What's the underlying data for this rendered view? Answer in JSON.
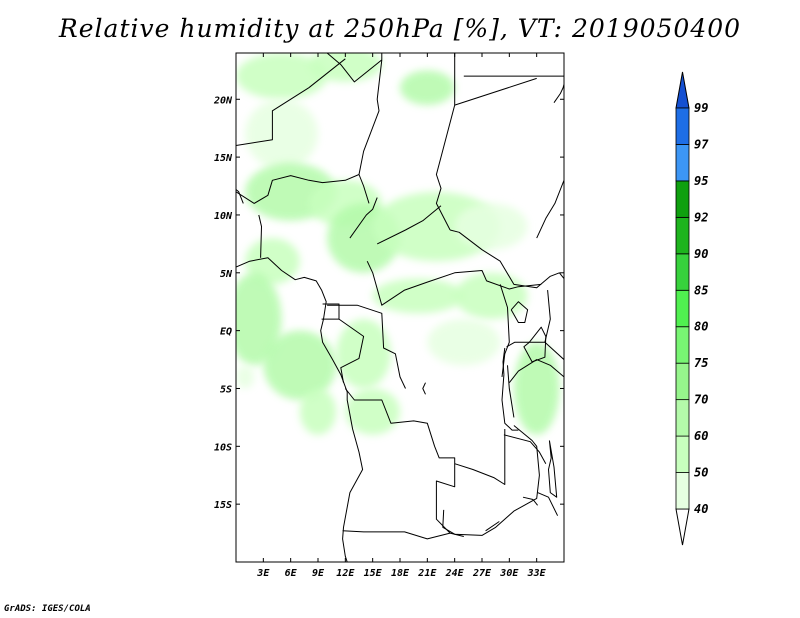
{
  "title": "Relative humidity at 250hPa [%], VT: 2019050400",
  "credit": "GrADS: IGES/COLA",
  "map": {
    "lon_range": [
      0,
      36
    ],
    "lat_range": [
      -20,
      24
    ],
    "x_ticks": [
      {
        "lon": 3,
        "label": "3E"
      },
      {
        "lon": 6,
        "label": "6E"
      },
      {
        "lon": 9,
        "label": "9E"
      },
      {
        "lon": 12,
        "label": "12E"
      },
      {
        "lon": 15,
        "label": "15E"
      },
      {
        "lon": 18,
        "label": "18E"
      },
      {
        "lon": 21,
        "label": "21E"
      },
      {
        "lon": 24,
        "label": "24E"
      },
      {
        "lon": 27,
        "label": "27E"
      },
      {
        "lon": 30,
        "label": "30E"
      },
      {
        "lon": 33,
        "label": "33E"
      }
    ],
    "y_ticks": [
      {
        "lat": 20,
        "label": "20N"
      },
      {
        "lat": 15,
        "label": "15N"
      },
      {
        "lat": 10,
        "label": "10N"
      },
      {
        "lat": 5,
        "label": "5N"
      },
      {
        "lat": 0,
        "label": "EQ"
      },
      {
        "lat": -5,
        "label": "5S"
      },
      {
        "lat": -10,
        "label": "10S"
      },
      {
        "lat": -15,
        "label": "15S"
      }
    ]
  },
  "colorbar": {
    "bins": [
      {
        "from": 40,
        "to": 50,
        "color": "#e6ffe1"
      },
      {
        "from": 50,
        "to": 60,
        "color": "#c8ffbe"
      },
      {
        "from": 60,
        "to": 70,
        "color": "#b4faaa"
      },
      {
        "from": 70,
        "to": 75,
        "color": "#96f58c"
      },
      {
        "from": 75,
        "to": 80,
        "color": "#78f573"
      },
      {
        "from": 80,
        "to": 85,
        "color": "#50f050"
      },
      {
        "from": 85,
        "to": 90,
        "color": "#37d23c"
      },
      {
        "from": 90,
        "to": 92,
        "color": "#1eb41e"
      },
      {
        "from": 92,
        "to": 95,
        "color": "#0fa00f"
      },
      {
        "from": 95,
        "to": 97,
        "color": "#3c96f5"
      },
      {
        "from": 97,
        "to": 99,
        "color": "#1e6ee6"
      }
    ],
    "under_color": "#ffffff",
    "over_color": "#1450d2",
    "labels": [
      "40",
      "50",
      "60",
      "70",
      "75",
      "80",
      "85",
      "90",
      "92",
      "95",
      "97",
      "99"
    ]
  },
  "humidity_fields": [
    {
      "lon": 5,
      "lat": 22,
      "rlon": 5,
      "rlat": 2,
      "value": 55
    },
    {
      "lon": 12,
      "lat": 23,
      "rlon": 4,
      "rlat": 1.5,
      "value": 50
    },
    {
      "lon": 21,
      "lat": 21,
      "rlon": 3,
      "rlat": 1.5,
      "value": 60
    },
    {
      "lon": 5,
      "lat": 17,
      "rlon": 4,
      "rlat": 3,
      "value": 45
    },
    {
      "lon": 6,
      "lat": 12,
      "rlon": 5,
      "rlat": 2.5,
      "value": 60
    },
    {
      "lon": 12,
      "lat": 11,
      "rlon": 4,
      "rlat": 2,
      "value": 55
    },
    {
      "lon": 14,
      "lat": 8,
      "rlon": 4,
      "rlat": 3,
      "value": 62
    },
    {
      "lon": 22,
      "lat": 9,
      "rlon": 7,
      "rlat": 3,
      "value": 55
    },
    {
      "lon": 28,
      "lat": 9,
      "rlon": 4,
      "rlat": 2,
      "value": 45
    },
    {
      "lon": 4,
      "lat": 6,
      "rlon": 3,
      "rlat": 2,
      "value": 58
    },
    {
      "lon": 2,
      "lat": 1,
      "rlon": 3,
      "rlat": 4,
      "value": 60
    },
    {
      "lon": 7,
      "lat": -3,
      "rlon": 4,
      "rlat": 3,
      "value": 62
    },
    {
      "lon": 14,
      "lat": -2,
      "rlon": 3,
      "rlat": 3,
      "value": 55
    },
    {
      "lon": 20,
      "lat": 3,
      "rlon": 5,
      "rlat": 1.5,
      "value": 50
    },
    {
      "lon": 28,
      "lat": 3,
      "rlon": 4,
      "rlat": 2,
      "value": 52
    },
    {
      "lon": 25,
      "lat": -1,
      "rlon": 4,
      "rlat": 2,
      "value": 45
    },
    {
      "lon": 33,
      "lat": -5,
      "rlon": 2.5,
      "rlat": 4,
      "value": 62
    },
    {
      "lon": 15,
      "lat": -7,
      "rlon": 3,
      "rlat": 2,
      "value": 55
    },
    {
      "lon": 9,
      "lat": -7,
      "rlon": 2,
      "rlat": 2,
      "value": 50
    },
    {
      "lon": 1,
      "lat": -4,
      "rlon": 1,
      "rlat": 1,
      "value": 45
    }
  ],
  "borders": [
    [
      [
        0,
        24
      ],
      [
        10,
        24
      ],
      [
        11.5,
        23
      ],
      [
        13,
        21.5
      ],
      [
        16,
        23.4
      ]
    ],
    [
      [
        16,
        23.4
      ],
      [
        16,
        24
      ]
    ],
    [
      [
        24,
        19.5
      ],
      [
        24,
        24
      ]
    ],
    [
      [
        25,
        22
      ],
      [
        36,
        22
      ]
    ],
    [
      [
        8,
        21
      ],
      [
        12,
        23.5
      ]
    ],
    [
      [
        16,
        23.4
      ],
      [
        15.5,
        20
      ],
      [
        15.7,
        19
      ],
      [
        14,
        15.5
      ],
      [
        13.5,
        13.5
      ],
      [
        14,
        12.5
      ],
      [
        14.6,
        11
      ]
    ],
    [
      [
        0,
        12
      ],
      [
        2,
        11
      ],
      [
        3.5,
        11.7
      ],
      [
        4,
        13
      ],
      [
        6,
        13.4
      ],
      [
        8,
        13
      ],
      [
        9.5,
        12.8
      ],
      [
        12,
        13
      ],
      [
        13.5,
        13.5
      ]
    ],
    [
      [
        0,
        16
      ],
      [
        4,
        16.5
      ],
      [
        4,
        19
      ],
      [
        8,
        21
      ]
    ],
    [
      [
        24,
        19.5
      ],
      [
        22.5,
        15
      ],
      [
        22,
        13.5
      ],
      [
        22.5,
        12.3
      ],
      [
        22,
        11
      ],
      [
        23.5,
        8.7
      ]
    ],
    [
      [
        24,
        19.5
      ],
      [
        33,
        21.8
      ]
    ],
    [
      [
        2.5,
        10
      ],
      [
        2.8,
        9
      ],
      [
        2.7,
        6.3
      ]
    ],
    [
      [
        12.5,
        8
      ],
      [
        14.3,
        10
      ],
      [
        15,
        10.5
      ],
      [
        15.5,
        11.5
      ]
    ],
    [
      [
        15.5,
        7.5
      ],
      [
        18.6,
        8.7
      ],
      [
        20.5,
        9.5
      ],
      [
        22.5,
        10.8
      ]
    ],
    [
      [
        14.4,
        6
      ],
      [
        15,
        5
      ],
      [
        16,
        2.2
      ],
      [
        18.5,
        3.5
      ],
      [
        21,
        4.2
      ],
      [
        24,
        5
      ],
      [
        27,
        5.2
      ],
      [
        27.5,
        4.3
      ],
      [
        30,
        3.6
      ],
      [
        31,
        3.8
      ],
      [
        33.5,
        4
      ]
    ],
    [
      [
        23.5,
        8.7
      ],
      [
        24.5,
        8.5
      ],
      [
        27,
        7
      ],
      [
        29,
        6
      ],
      [
        30.5,
        4
      ],
      [
        33,
        3.7
      ],
      [
        34.5,
        4.7
      ],
      [
        35.5,
        5
      ],
      [
        36,
        4.5
      ]
    ],
    [
      [
        33,
        8
      ],
      [
        34,
        9.7
      ],
      [
        35,
        11
      ],
      [
        36,
        13
      ]
    ],
    [
      [
        29,
        4
      ],
      [
        29.8,
        2
      ],
      [
        30,
        -1
      ],
      [
        29.5,
        -2
      ],
      [
        29.2,
        -4
      ]
    ],
    [
      [
        9.5,
        2.3
      ],
      [
        11.3,
        2.3
      ],
      [
        11.3,
        1
      ],
      [
        9.4,
        1
      ]
    ],
    [
      [
        10,
        2.2
      ],
      [
        13.3,
        2.2
      ],
      [
        16,
        1.5
      ],
      [
        16.2,
        -1.5
      ],
      [
        17.5,
        -2
      ],
      [
        18,
        -4
      ],
      [
        18.6,
        -5
      ]
    ],
    [
      [
        11.3,
        1
      ],
      [
        14,
        -0.5
      ],
      [
        13.5,
        -2.4
      ],
      [
        11.5,
        -3.2
      ],
      [
        11.8,
        -4.5
      ]
    ],
    [
      [
        12,
        -5
      ],
      [
        13,
        -6
      ],
      [
        16,
        -6
      ],
      [
        17,
        -8
      ],
      [
        19.5,
        -7.8
      ],
      [
        21,
        -8
      ],
      [
        21.8,
        -10
      ],
      [
        22.3,
        -11
      ],
      [
        24,
        -11
      ],
      [
        24,
        -13.5
      ],
      [
        22,
        -13
      ],
      [
        22,
        -16.3
      ],
      [
        23.5,
        -17.5
      ],
      [
        25,
        -17.8
      ]
    ],
    [
      [
        11.7,
        -17.3
      ],
      [
        14,
        -17.4
      ],
      [
        18.5,
        -17.4
      ],
      [
        21,
        -18
      ],
      [
        23.5,
        -17.5
      ]
    ],
    [
      [
        24,
        -11.5
      ],
      [
        26,
        -12
      ],
      [
        28.3,
        -12.7
      ],
      [
        29.5,
        -13.3
      ],
      [
        29.5,
        -8.5
      ]
    ],
    [
      [
        22.8,
        -15.5
      ],
      [
        22.7,
        -17
      ],
      [
        24,
        -17.6
      ],
      [
        27,
        -17.7
      ],
      [
        28.5,
        -17
      ],
      [
        30.5,
        -15.6
      ],
      [
        33,
        -14.5
      ],
      [
        33.3,
        -12.5
      ],
      [
        33,
        -10
      ],
      [
        32.5,
        -9.5
      ],
      [
        30.5,
        -8.2
      ]
    ],
    [
      [
        29.7,
        -1.4
      ],
      [
        30.6,
        -1
      ],
      [
        33.9,
        -1
      ],
      [
        34.5,
        1
      ],
      [
        34.2,
        3.5
      ]
    ],
    [
      [
        33.9,
        -1
      ],
      [
        36,
        -2.5
      ]
    ],
    [
      [
        30,
        -4.5
      ],
      [
        31,
        -3.5
      ],
      [
        33,
        -2.5
      ],
      [
        34.5,
        -3
      ],
      [
        36,
        -4
      ]
    ],
    [
      [
        29.4,
        -9
      ],
      [
        32.3,
        -9.6
      ],
      [
        33.3,
        -10.5
      ],
      [
        34,
        -11.5
      ]
    ],
    [
      [
        35.3,
        -16
      ],
      [
        34.3,
        -14.4
      ],
      [
        33.1,
        -14
      ]
    ]
  ],
  "coastlines": [
    [
      [
        0,
        5.5
      ],
      [
        1.5,
        6
      ],
      [
        3.5,
        6.3
      ],
      [
        5,
        5.2
      ],
      [
        6.5,
        4.4
      ],
      [
        7.5,
        4.6
      ],
      [
        8.8,
        4.3
      ],
      [
        9.4,
        3.5
      ],
      [
        9.9,
        2.5
      ],
      [
        9.6,
        1
      ],
      [
        9.3,
        0
      ],
      [
        9.5,
        -1
      ],
      [
        10.6,
        -2.5
      ],
      [
        11.5,
        -3.8
      ],
      [
        12.2,
        -5.3
      ],
      [
        12.2,
        -6
      ],
      [
        12.8,
        -8.5
      ],
      [
        13.5,
        -10.5
      ],
      [
        13.9,
        -12
      ],
      [
        12.5,
        -14
      ],
      [
        11.8,
        -17
      ],
      [
        11.7,
        -18
      ],
      [
        12,
        -19.5
      ],
      [
        12.2,
        -20
      ]
    ],
    [
      [
        0,
        12.2
      ],
      [
        0.3,
        12
      ],
      [
        0.8,
        11
      ]
    ],
    [
      [
        20.8,
        -4.5
      ],
      [
        20.5,
        -5
      ],
      [
        20.8,
        -5.5
      ]
    ],
    [
      [
        29.4,
        -3.8
      ],
      [
        29.2,
        -6
      ],
      [
        29.5,
        -8
      ],
      [
        30.3,
        -8.6
      ],
      [
        31,
        -8.6
      ]
    ],
    [
      [
        29.8,
        -3
      ],
      [
        30,
        -5
      ],
      [
        30.5,
        -7.5
      ]
    ],
    [
      [
        29.5,
        -1.5
      ],
      [
        29.3,
        -2.7
      ],
      [
        29.4,
        -3.8
      ]
    ],
    [
      [
        30.2,
        1.8
      ],
      [
        31,
        0.7
      ],
      [
        31.7,
        0.7
      ],
      [
        32,
        1.8
      ],
      [
        31,
        2.5
      ],
      [
        30.2,
        1.8
      ]
    ],
    [
      [
        32.2,
        -1
      ],
      [
        33.5,
        0.3
      ],
      [
        34,
        -0.5
      ],
      [
        33.9,
        -2.3
      ],
      [
        32.5,
        -2.7
      ],
      [
        31.6,
        -1.4
      ],
      [
        32.2,
        -1
      ]
    ],
    [
      [
        34.4,
        -9.5
      ],
      [
        34.6,
        -11
      ],
      [
        34.3,
        -12
      ],
      [
        34.5,
        -14
      ],
      [
        35.2,
        -14.4
      ],
      [
        34.9,
        -11.8
      ],
      [
        34.4,
        -9.5
      ]
    ],
    [
      [
        31.5,
        -14.4
      ],
      [
        32.6,
        -14.6
      ],
      [
        33.1,
        -15.1
      ]
    ],
    [
      [
        27.4,
        -17.3
      ],
      [
        28.9,
        -16.5
      ]
    ],
    [
      [
        34.9,
        19.7
      ],
      [
        35.6,
        20.5
      ],
      [
        35.9,
        21
      ],
      [
        36,
        21.3
      ]
    ]
  ]
}
